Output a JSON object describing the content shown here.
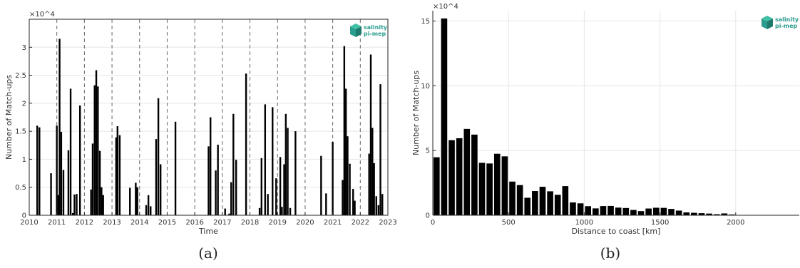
{
  "colors": {
    "bar": "#000000",
    "axis": "#262626",
    "grid": "#e6e6e6",
    "logo": "#2a9d8f"
  },
  "logo": {
    "line1": "salinity",
    "line2": "pi-mep"
  },
  "chart_data": [
    {
      "panel": "(a)",
      "type": "bar",
      "xlabel": "Time",
      "ylabel": "Number of Match-ups",
      "exponent_label": "×10^4",
      "y_tick_labels": [
        "0",
        "0.5",
        "1",
        "1.5",
        "2",
        "2.5",
        "3"
      ],
      "x_tick_labels": [
        "2010",
        "2011",
        "2012",
        "2013",
        "2014",
        "2015",
        "2016",
        "2017",
        "2018",
        "2019",
        "2020",
        "2021",
        "2022",
        "2023"
      ],
      "xlim": [
        2010,
        2023
      ],
      "ylim": [
        0,
        35000
      ],
      "grid": true,
      "year_separators": [
        2011,
        2012,
        2013,
        2014,
        2015,
        2016,
        2017,
        2018,
        2019,
        2020,
        2021,
        2022
      ],
      "x": [
        2010.29,
        2010.37,
        2010.79,
        2011.0,
        2011.06,
        2011.1,
        2011.16,
        2011.24,
        2011.42,
        2011.5,
        2011.58,
        2011.64,
        2011.72,
        2011.84,
        2012.24,
        2012.3,
        2012.37,
        2012.43,
        2012.49,
        2012.56,
        2012.62,
        2012.68,
        2012.73,
        2013.15,
        2013.2,
        2013.28,
        2013.65,
        2013.86,
        2013.92,
        2014.24,
        2014.32,
        2014.4,
        2014.6,
        2014.68,
        2014.76,
        2015.3,
        2016.5,
        2016.57,
        2016.76,
        2016.84,
        2016.9,
        2017.1,
        2017.25,
        2017.32,
        2017.4,
        2017.5,
        2017.86,
        2018.35,
        2018.42,
        2018.55,
        2018.65,
        2018.82,
        2018.95,
        2019.1,
        2019.16,
        2019.24,
        2019.3,
        2019.37,
        2019.46,
        2019.65,
        2020.58,
        2020.76,
        2021.0,
        2021.36,
        2021.42,
        2021.48,
        2021.54,
        2021.62,
        2021.74,
        2021.8,
        2022.32,
        2022.38,
        2022.44,
        2022.5,
        2022.58,
        2022.66,
        2022.73,
        2022.8
      ],
      "values": [
        16000,
        15700,
        7500,
        16000,
        3600,
        31500,
        14900,
        8100,
        11600,
        22600,
        400,
        3700,
        3800,
        19600,
        4600,
        12800,
        23200,
        25900,
        23000,
        11500,
        5000,
        3600,
        0,
        13900,
        15900,
        14300,
        4900,
        5800,
        5000,
        1800,
        3600,
        1600,
        13600,
        20900,
        9100,
        16700,
        12300,
        17500,
        8000,
        12600,
        0,
        1200,
        300,
        5900,
        18100,
        9900,
        25300,
        1300,
        10200,
        19800,
        3800,
        19300,
        6600,
        10400,
        1500,
        9100,
        18100,
        15600,
        1300,
        15000,
        10600,
        3900,
        13100,
        6300,
        30200,
        22600,
        14100,
        9200,
        4700,
        2600,
        11000,
        28700,
        15600,
        9300,
        3400,
        1800,
        23400,
        3800
      ]
    },
    {
      "panel": "(b)",
      "type": "bar",
      "xlabel": "Distance to coast [km]",
      "ylabel": "Number of Match-ups",
      "exponent_label": "×10^4",
      "y_tick_labels": [
        "0",
        "5",
        "10",
        "15"
      ],
      "x_tick_labels": [
        "0",
        "500",
        "1000",
        "1500",
        "2000"
      ],
      "xlim": [
        0,
        2420
      ],
      "ylim": [
        0,
        158000
      ],
      "grid": true,
      "bin_width": 50,
      "bin_start": 0,
      "values": [
        44800,
        152000,
        58000,
        59500,
        66700,
        62300,
        40500,
        40000,
        47500,
        45500,
        26000,
        23300,
        13500,
        18700,
        22000,
        18500,
        15800,
        22500,
        9900,
        9200,
        7000,
        5300,
        7100,
        7200,
        5900,
        5600,
        4100,
        3200,
        5200,
        5800,
        5700,
        4900,
        3600,
        2200,
        1900,
        1600,
        1300,
        800,
        1400,
        600,
        0,
        0,
        0,
        0,
        0,
        0,
        0,
        0
      ]
    }
  ],
  "captions": {
    "a": "(a)",
    "b": "(b)"
  }
}
